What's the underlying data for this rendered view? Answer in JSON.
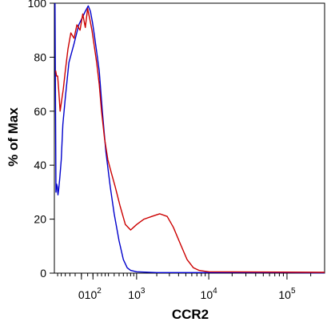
{
  "chart_data": {
    "type": "line",
    "title": "",
    "xlabel": "CCR2",
    "ylabel": "% of Max",
    "x_scale": "biexponential",
    "ylim": [
      0,
      100
    ],
    "y_ticks": [
      0,
      20,
      40,
      60,
      80,
      100
    ],
    "x_ticks": [
      {
        "base": "0",
        "exp": "",
        "value": 0
      },
      {
        "base": "10",
        "exp": "2",
        "value": 100
      },
      {
        "base": "10",
        "exp": "3",
        "value": 1000
      },
      {
        "base": "10",
        "exp": "4",
        "value": 10000
      },
      {
        "base": "10",
        "exp": "5",
        "value": 100000
      }
    ],
    "grid": false,
    "legend": "none",
    "series": [
      {
        "color": "#0000cc",
        "points": [
          [
            -290,
            100
          ],
          [
            -285,
            75
          ],
          [
            -275,
            30
          ],
          [
            -265,
            33
          ],
          [
            -255,
            32
          ],
          [
            -245,
            29
          ],
          [
            -235,
            31
          ],
          [
            -220,
            35
          ],
          [
            -200,
            42
          ],
          [
            -180,
            55
          ],
          [
            -150,
            65
          ],
          [
            -110,
            78
          ],
          [
            -60,
            85
          ],
          [
            -20,
            92
          ],
          [
            10,
            95
          ],
          [
            30,
            97
          ],
          [
            55,
            99
          ],
          [
            75,
            97
          ],
          [
            95,
            93
          ],
          [
            115,
            88
          ],
          [
            140,
            82
          ],
          [
            170,
            75
          ],
          [
            210,
            60
          ],
          [
            260,
            45
          ],
          [
            330,
            32
          ],
          [
            400,
            22
          ],
          [
            500,
            12
          ],
          [
            600,
            5
          ],
          [
            700,
            2
          ],
          [
            800,
            1
          ],
          [
            1000,
            0.5
          ],
          [
            2000,
            0.2
          ],
          [
            100000,
            0.2
          ],
          [
            300000,
            0.1
          ]
        ]
      },
      {
        "color": "#cc0000",
        "points": [
          [
            -280,
            75
          ],
          [
            -265,
            73
          ],
          [
            -250,
            73
          ],
          [
            -235,
            68
          ],
          [
            -215,
            60
          ],
          [
            -195,
            64
          ],
          [
            -175,
            68
          ],
          [
            -150,
            75
          ],
          [
            -120,
            83
          ],
          [
            -90,
            89
          ],
          [
            -60,
            87
          ],
          [
            -35,
            92
          ],
          [
            -10,
            90
          ],
          [
            10,
            96
          ],
          [
            30,
            91
          ],
          [
            50,
            98
          ],
          [
            70,
            94
          ],
          [
            90,
            90
          ],
          [
            110,
            85
          ],
          [
            140,
            78
          ],
          [
            170,
            70
          ],
          [
            200,
            60
          ],
          [
            240,
            50
          ],
          [
            290,
            42
          ],
          [
            350,
            37
          ],
          [
            420,
            32
          ],
          [
            520,
            25
          ],
          [
            650,
            18
          ],
          [
            800,
            16
          ],
          [
            1000,
            18
          ],
          [
            1300,
            20
          ],
          [
            1700,
            21
          ],
          [
            2200,
            22
          ],
          [
            2800,
            21
          ],
          [
            3400,
            17
          ],
          [
            4200,
            11
          ],
          [
            5200,
            5
          ],
          [
            6300,
            2
          ],
          [
            7500,
            1
          ],
          [
            10000,
            0.5
          ],
          [
            300000,
            0.3
          ]
        ]
      }
    ]
  }
}
